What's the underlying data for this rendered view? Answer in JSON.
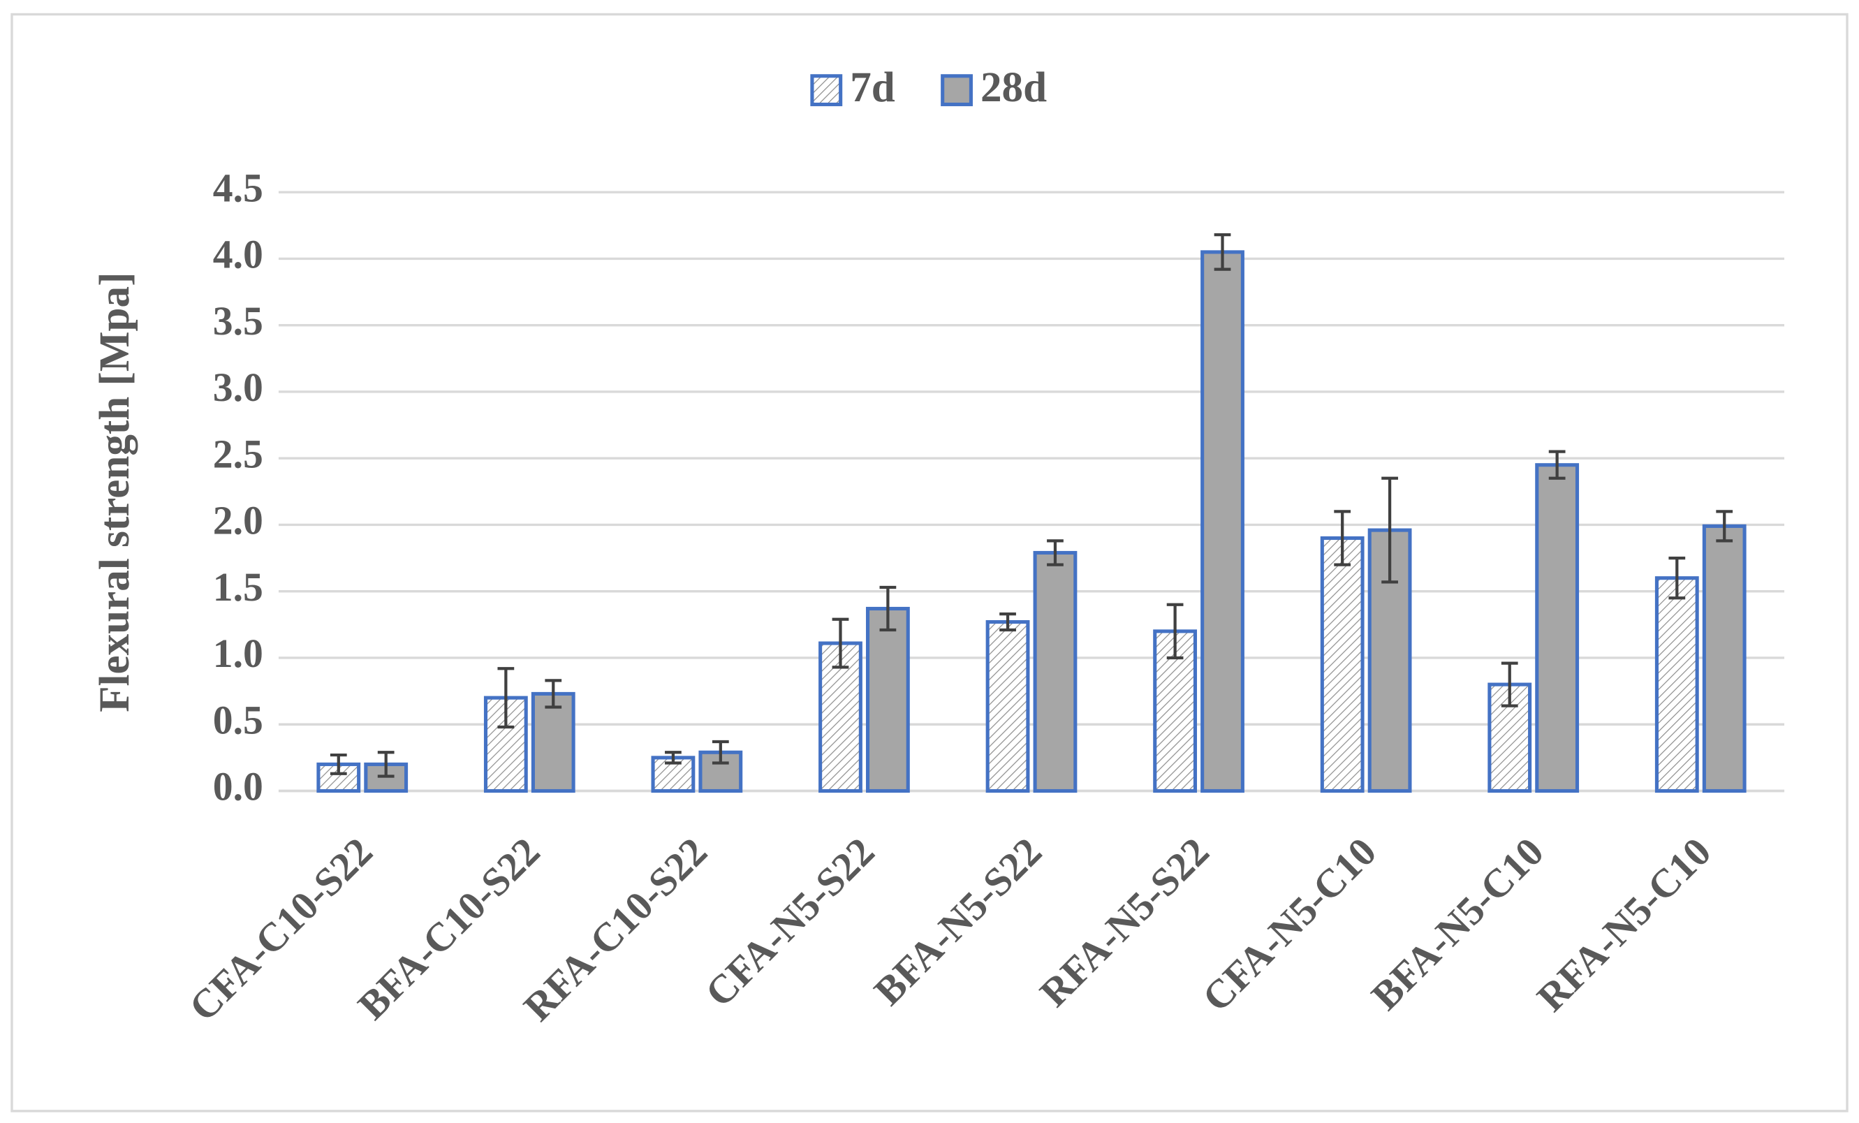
{
  "chart_data": {
    "type": "bar",
    "y_label": "Flexural strength [Mpa]",
    "categories": [
      "CFA-C10-S22",
      "BFA-C10-S22",
      "RFA-C10-S22",
      "CFA-N5-S22",
      "BFA-N5-S22",
      "RFA-N5-S22",
      "CFA-N5-C10",
      "BFA-N5-C10",
      "RFA-N5-C10"
    ],
    "series": [
      {
        "name": "7d",
        "color": "#4472c4",
        "pattern": "hatch",
        "values": [
          0.2,
          0.7,
          0.25,
          1.11,
          1.27,
          1.2,
          1.9,
          0.8,
          1.6
        ],
        "errors": [
          0.07,
          0.22,
          0.04,
          0.18,
          0.06,
          0.2,
          0.2,
          0.16,
          0.15
        ]
      },
      {
        "name": "28d",
        "color": "#4472c4",
        "fill": "#a6a6a6",
        "values": [
          0.2,
          0.73,
          0.29,
          1.37,
          1.79,
          4.05,
          1.96,
          2.45,
          1.99
        ],
        "errors": [
          0.09,
          0.1,
          0.08,
          0.16,
          0.09,
          0.13,
          0.39,
          0.1,
          0.11
        ]
      }
    ],
    "ylim": [
      0,
      4.5
    ],
    "yticks": [
      {
        "value": 0,
        "label": "0.0"
      },
      0.5,
      {
        "value": 1,
        "label": "1.0"
      },
      1.5,
      {
        "value": 2,
        "label": "2.0"
      },
      2.5,
      {
        "value": 3,
        "label": "3.0"
      },
      3.5,
      {
        "value": 4,
        "label": "4.0"
      },
      4.5
    ],
    "grid": true,
    "legend": "top"
  }
}
